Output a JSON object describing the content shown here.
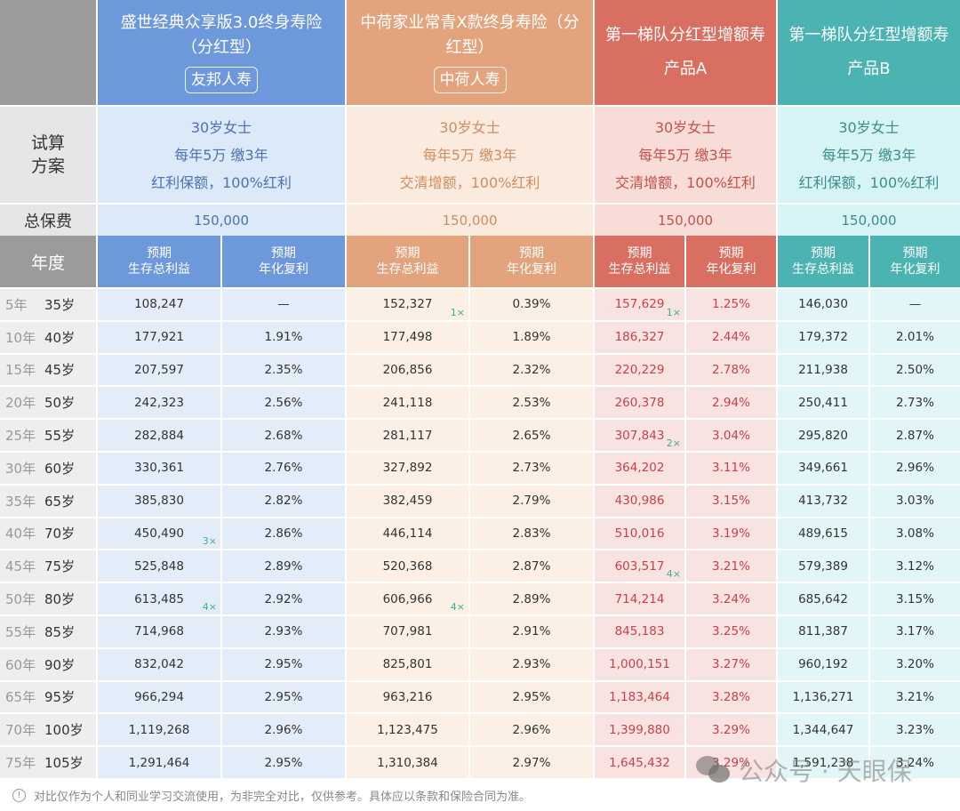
{
  "products": [
    {
      "name": "盛世经典众享版3.0终身寿险",
      "sub": "（分红型）",
      "company": "友邦人寿",
      "color": "#6d98db",
      "person": "30岁女士",
      "payment": "每年5万 缴3年",
      "dividend": "红利保额，100%红利",
      "total_premium": "150,000"
    },
    {
      "name": "中荷家业常青X款终身寿险（分",
      "sub": "红型）",
      "company": "中荷人寿",
      "color": "#e3a37c",
      "person": "30岁女士",
      "payment": "每年5万 缴3年",
      "dividend": "交清增额，100%红利",
      "total_premium": "150,000"
    },
    {
      "name": "第一梯队分红型增额寿",
      "sub": "产品A",
      "company": "",
      "color": "#d86f61",
      "person": "30岁女士",
      "payment": "每年5万 缴3年",
      "dividend": "交清增额，100%红利",
      "total_premium": "150,000"
    },
    {
      "name": "第一梯队分红型增额寿",
      "sub": "产品B",
      "company": "",
      "color": "#4bb3b2",
      "person": "30岁女士",
      "payment": "每年5万 缴3年",
      "dividend": "红利保额，100%红利",
      "total_premium": "150,000"
    }
  ],
  "labels": {
    "scheme_line1": "试算",
    "scheme_line2": "方案",
    "total_premium": "总保费",
    "year": "年度",
    "col_benefit_line1": "预期",
    "col_benefit_line2": "生存总利益",
    "col_irr_line1": "预期",
    "col_irr_line2": "年化复利"
  },
  "rows": [
    {
      "year": "5年",
      "age": "35岁",
      "v": [
        "108,247",
        "—",
        "152,327",
        "0.39%",
        "157,629",
        "1.25%",
        "146,030",
        "—"
      ],
      "m": [
        "",
        "",
        "1×",
        "",
        "1×",
        "",
        "",
        ""
      ]
    },
    {
      "year": "10年",
      "age": "40岁",
      "v": [
        "177,921",
        "1.91%",
        "177,498",
        "1.89%",
        "186,327",
        "2.44%",
        "179,372",
        "2.01%"
      ],
      "m": [
        "",
        "",
        "",
        "",
        "",
        "",
        "",
        ""
      ]
    },
    {
      "year": "15年",
      "age": "45岁",
      "v": [
        "207,597",
        "2.35%",
        "206,856",
        "2.32%",
        "220,229",
        "2.78%",
        "211,938",
        "2.50%"
      ],
      "m": [
        "",
        "",
        "",
        "",
        "",
        "",
        "",
        ""
      ]
    },
    {
      "year": "20年",
      "age": "50岁",
      "v": [
        "242,323",
        "2.56%",
        "241,118",
        "2.53%",
        "260,378",
        "2.94%",
        "250,411",
        "2.73%"
      ],
      "m": [
        "",
        "",
        "",
        "",
        "",
        "",
        "",
        ""
      ]
    },
    {
      "year": "25年",
      "age": "55岁",
      "v": [
        "282,884",
        "2.68%",
        "281,117",
        "2.65%",
        "307,843",
        "3.04%",
        "295,820",
        "2.87%"
      ],
      "m": [
        "",
        "",
        "",
        "",
        "2×",
        "",
        "",
        ""
      ]
    },
    {
      "year": "30年",
      "age": "60岁",
      "v": [
        "330,361",
        "2.76%",
        "327,892",
        "2.73%",
        "364,202",
        "3.11%",
        "349,661",
        "2.96%"
      ],
      "m": [
        "",
        "",
        "",
        "",
        "",
        "",
        "",
        ""
      ]
    },
    {
      "year": "35年",
      "age": "65岁",
      "v": [
        "385,830",
        "2.82%",
        "382,459",
        "2.79%",
        "430,986",
        "3.15%",
        "413,732",
        "3.03%"
      ],
      "m": [
        "",
        "",
        "",
        "",
        "",
        "",
        "",
        ""
      ]
    },
    {
      "year": "40年",
      "age": "70岁",
      "v": [
        "450,490",
        "2.86%",
        "446,114",
        "2.83%",
        "510,016",
        "3.19%",
        "489,615",
        "3.08%"
      ],
      "m": [
        "3×",
        "",
        "",
        "",
        "",
        "",
        "",
        ""
      ]
    },
    {
      "year": "45年",
      "age": "75岁",
      "v": [
        "525,848",
        "2.89%",
        "520,368",
        "2.87%",
        "603,517",
        "3.21%",
        "579,389",
        "3.12%"
      ],
      "m": [
        "",
        "",
        "",
        "",
        "4×",
        "",
        "",
        ""
      ]
    },
    {
      "year": "50年",
      "age": "80岁",
      "v": [
        "613,485",
        "2.92%",
        "606,966",
        "2.89%",
        "714,214",
        "3.24%",
        "685,642",
        "3.15%"
      ],
      "m": [
        "4×",
        "",
        "4×",
        "",
        "",
        "",
        "",
        ""
      ]
    },
    {
      "year": "55年",
      "age": "85岁",
      "v": [
        "714,968",
        "2.93%",
        "707,981",
        "2.91%",
        "845,183",
        "3.25%",
        "811,387",
        "3.17%"
      ],
      "m": [
        "",
        "",
        "",
        "",
        "",
        "",
        "",
        ""
      ]
    },
    {
      "year": "60年",
      "age": "90岁",
      "v": [
        "832,042",
        "2.95%",
        "825,801",
        "2.93%",
        "1,000,151",
        "3.27%",
        "960,192",
        "3.20%"
      ],
      "m": [
        "",
        "",
        "",
        "",
        "",
        "",
        "",
        ""
      ]
    },
    {
      "year": "65年",
      "age": "95岁",
      "v": [
        "966,294",
        "2.95%",
        "963,216",
        "2.95%",
        "1,183,464",
        "3.28%",
        "1,136,271",
        "3.21%"
      ],
      "m": [
        "",
        "",
        "",
        "",
        "",
        "",
        "",
        ""
      ]
    },
    {
      "year": "70年",
      "age": "100岁",
      "v": [
        "1,119,268",
        "2.96%",
        "1,123,475",
        "2.96%",
        "1,399,880",
        "3.29%",
        "1,344,647",
        "3.23%"
      ],
      "m": [
        "",
        "",
        "",
        "",
        "",
        "",
        "",
        ""
      ]
    },
    {
      "year": "75年",
      "age": "105岁",
      "v": [
        "1,291,464",
        "2.95%",
        "1,310,384",
        "2.97%",
        "1,645,432",
        "3.29%",
        "1,591,238",
        "3.24%"
      ],
      "m": [
        "",
        "",
        "",
        "",
        "",
        "",
        "",
        ""
      ]
    }
  ],
  "footer": {
    "icon": "info-circle-icon",
    "text": "对比仅作为个人和同业学习交流使用，为非完全对比，仅供参考。具体应以条款和保险合同为准。"
  },
  "watermark": {
    "icon": "wechat-icon",
    "text": "公众号 · 天眼保"
  }
}
